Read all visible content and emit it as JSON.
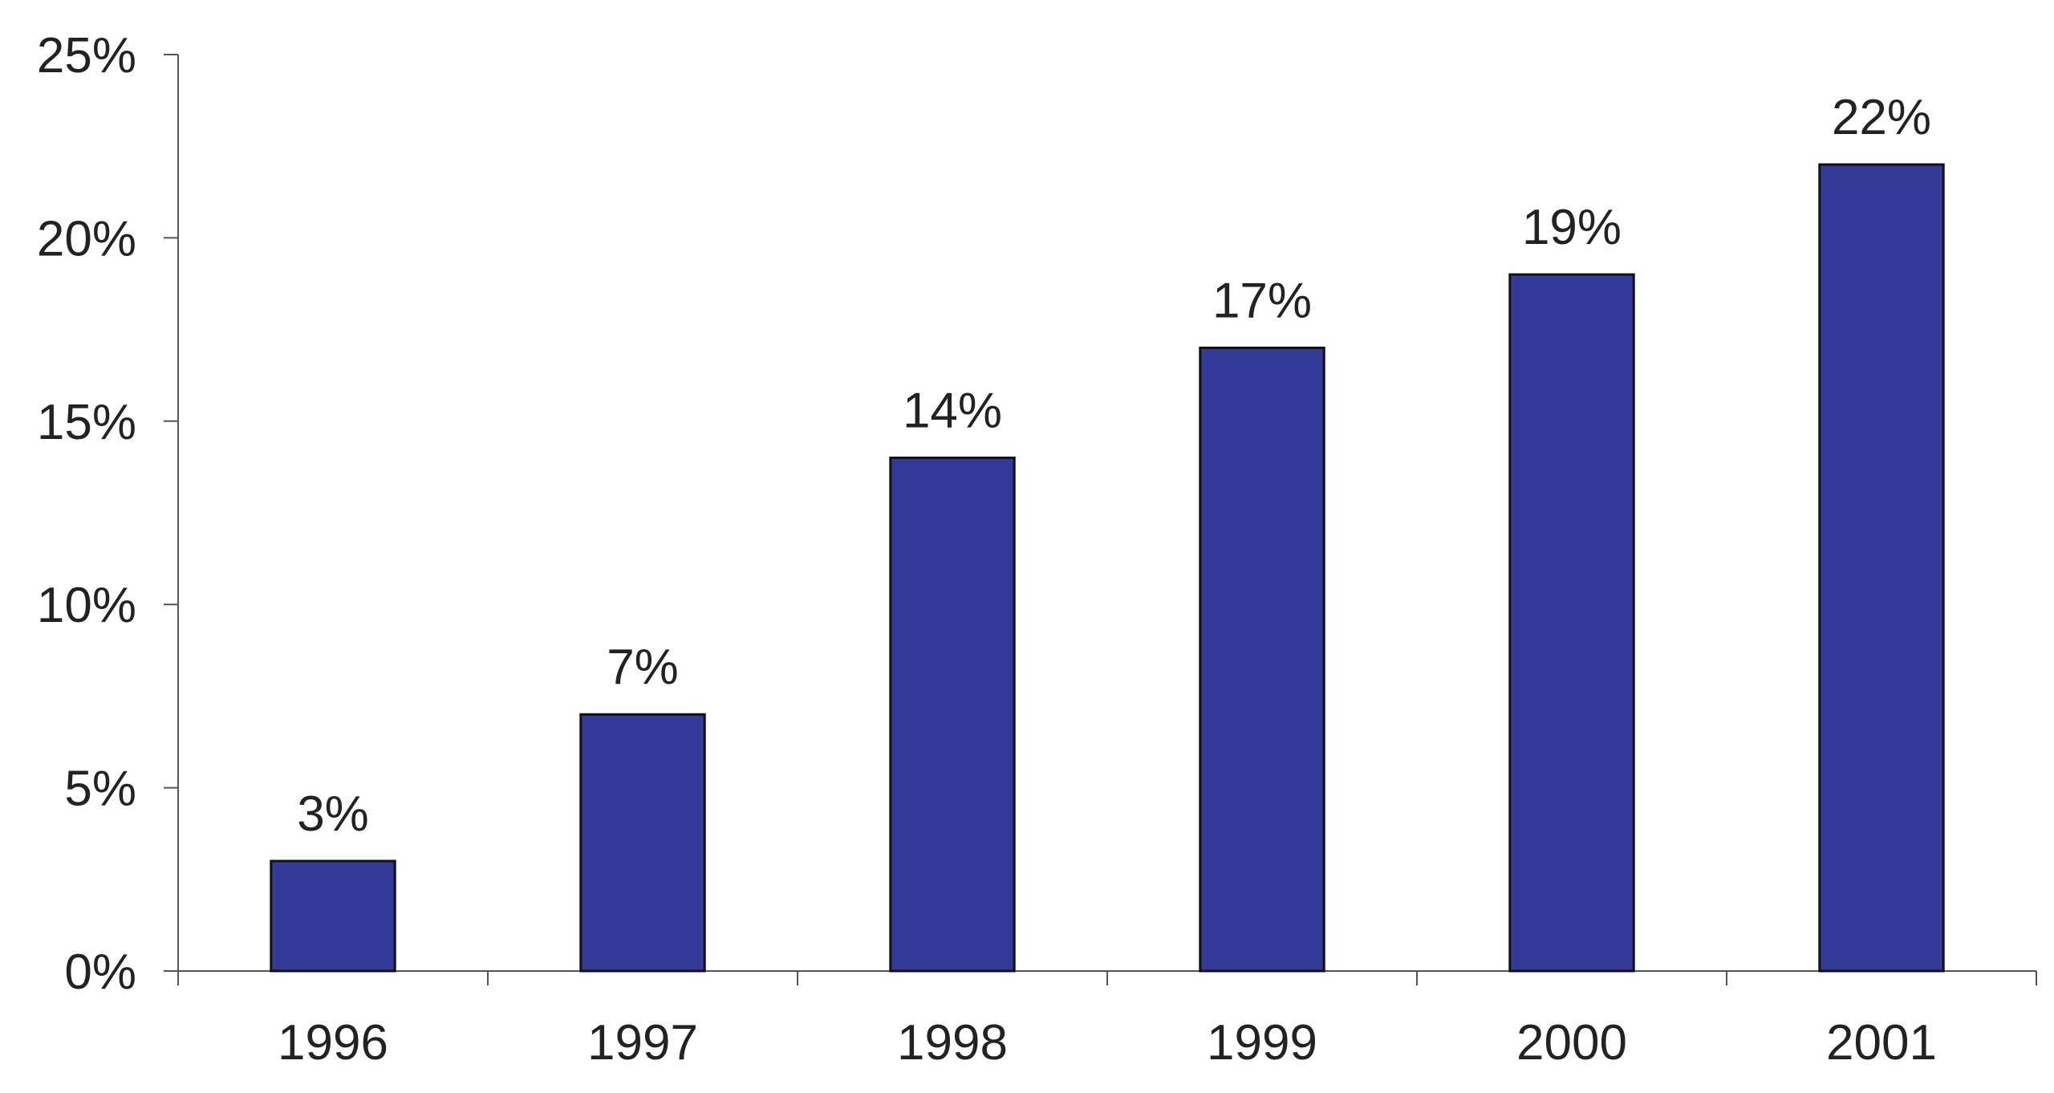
{
  "chart_data": {
    "type": "bar",
    "title": "",
    "xlabel": "",
    "ylabel": "",
    "categories": [
      "1996",
      "1997",
      "1998",
      "1999",
      "2000",
      "2001"
    ],
    "values": [
      3,
      7,
      14,
      17,
      19,
      22
    ],
    "data_labels": [
      "3%",
      "7%",
      "14%",
      "17%",
      "19%",
      "22%"
    ],
    "ylim": [
      0,
      25
    ],
    "yticks": [
      0,
      5,
      10,
      15,
      20,
      25
    ],
    "ytick_labels": [
      "0%",
      "5%",
      "10%",
      "15%",
      "20%",
      "25%"
    ],
    "grid": false,
    "legend": "none",
    "bar_color": "#333a97",
    "bar_edge_color": "#111111",
    "axis_color": "#555555"
  }
}
